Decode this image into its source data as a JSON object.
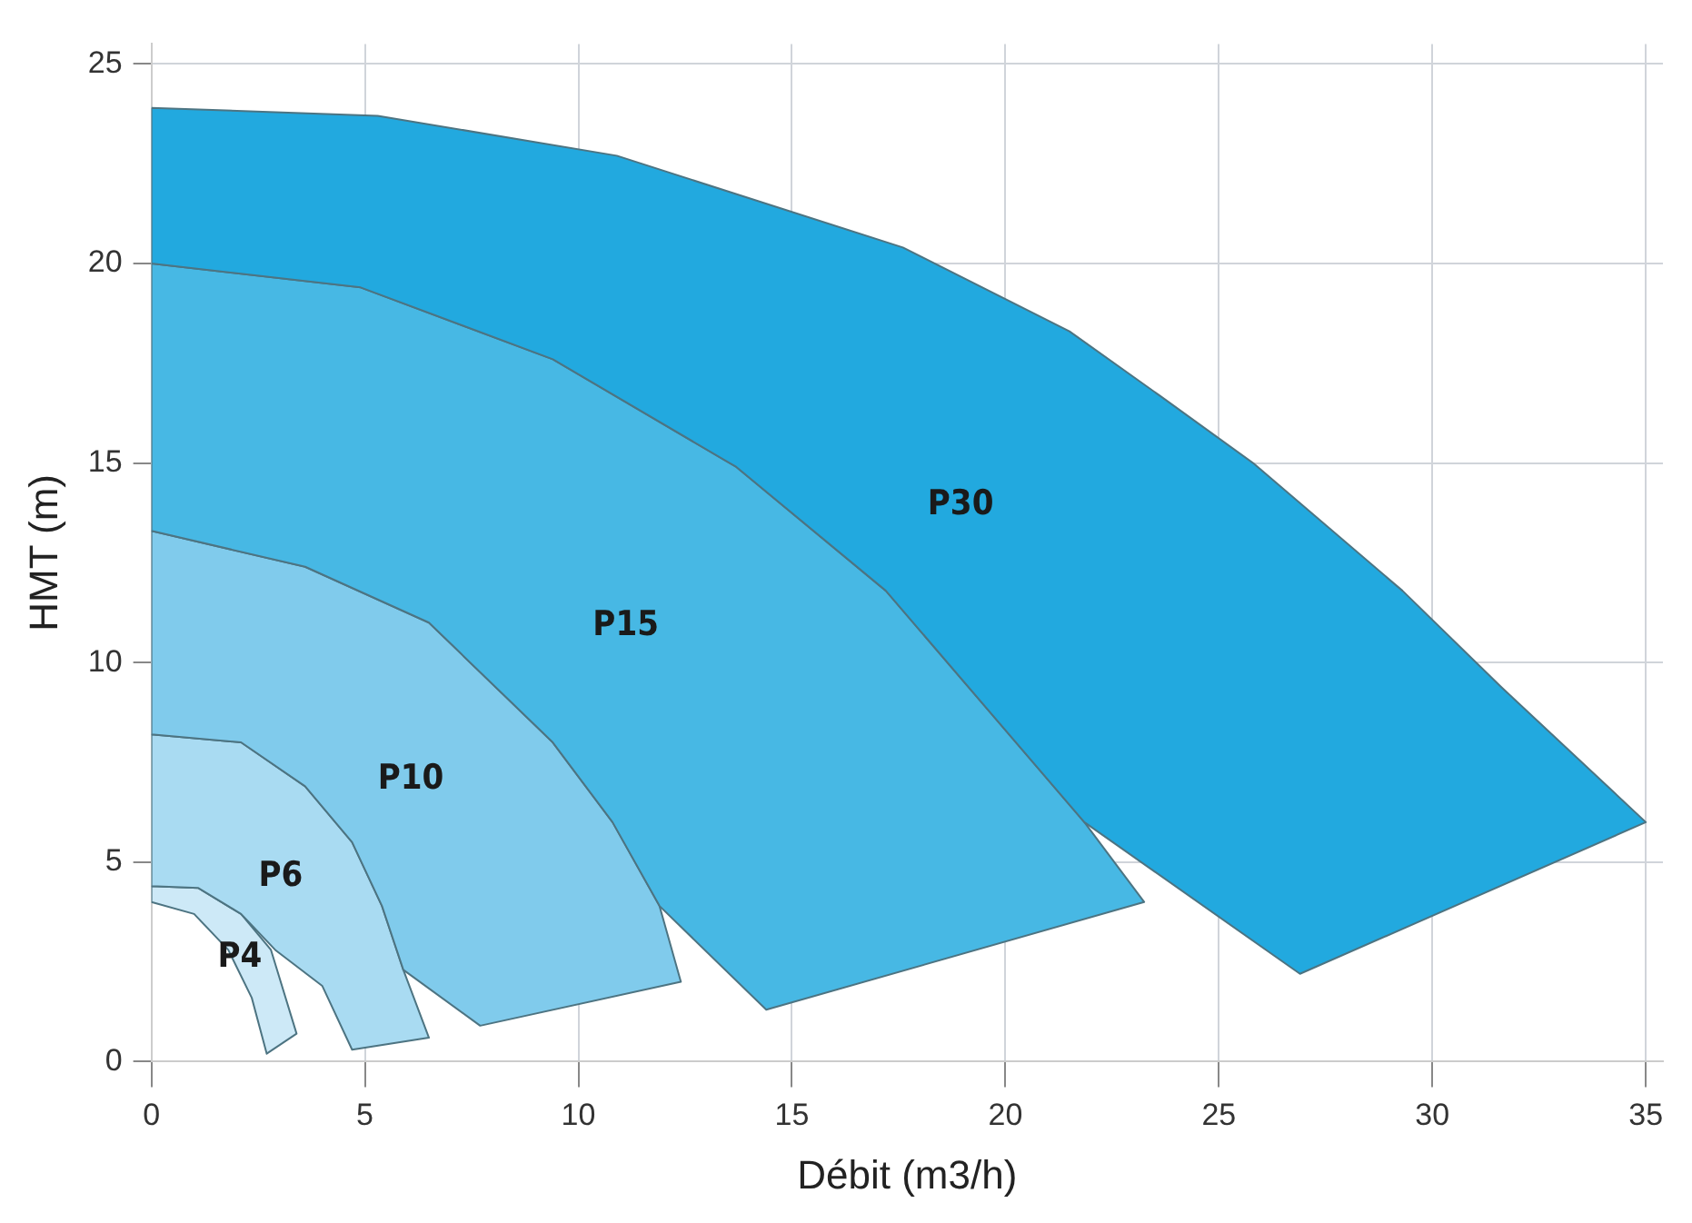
{
  "chart_data": {
    "type": "area",
    "xlabel": "Débit (m3/h)",
    "ylabel": "HMT (m)",
    "xlim": [
      0,
      35.4
    ],
    "xticks": [
      0,
      5,
      10,
      15,
      20,
      25,
      30,
      35
    ],
    "ylim": [
      0,
      25.5
    ],
    "yticks": [
      0,
      5,
      10,
      15,
      20,
      25
    ],
    "grid": true,
    "legend": false,
    "series": [
      {
        "name": "P30",
        "color": "#22a9df",
        "x": [
          0,
          5.3,
          10.9,
          17.6,
          21.5,
          23.6,
          25.8,
          29.3,
          31.6,
          35,
          26.9,
          21.85,
          17.2,
          13.7,
          9.4,
          4.9,
          0
        ],
        "values": [
          23.9,
          23.7,
          22.7,
          20.4,
          18.3,
          16.7,
          15,
          11.8,
          9.4,
          6,
          2.2,
          6,
          11.8,
          14.9,
          17.6,
          19.4,
          20
        ]
      },
      {
        "name": "P15",
        "color": "#47b8e4",
        "x": [
          0,
          4.9,
          9.4,
          13.7,
          17.2,
          21.85,
          23.25,
          14.4,
          11.9,
          10.8,
          9.4,
          6.5,
          3.6,
          0
        ],
        "values": [
          20,
          19.4,
          17.6,
          14.9,
          11.8,
          6,
          4,
          1.3,
          3.9,
          6,
          8,
          11,
          12.4,
          13.3
        ]
      },
      {
        "name": "P10",
        "color": "#80cbec",
        "x": [
          0,
          3.6,
          6.5,
          9.4,
          10.8,
          11.9,
          12.4,
          7.7,
          5.9,
          5.4,
          4.7,
          3.6,
          2.1,
          0
        ],
        "values": [
          13.3,
          12.4,
          11,
          8,
          6,
          3.9,
          2,
          0.9,
          2.3,
          3.9,
          5.5,
          6.9,
          8,
          8.2
        ]
      },
      {
        "name": "P6",
        "color": "#a9dbf2",
        "x": [
          0,
          2.1,
          3.6,
          4.7,
          5.4,
          5.9,
          6.5,
          4.7,
          4,
          2.9,
          2.1,
          1.1,
          0
        ],
        "values": [
          8.2,
          8,
          6.9,
          5.5,
          3.9,
          2.3,
          0.6,
          0.3,
          1.9,
          2.8,
          3.7,
          4.35,
          4.4
        ]
      },
      {
        "name": "P4",
        "color": "#cde9f7",
        "x": [
          0,
          1.1,
          2.1,
          2.8,
          3.4,
          2.7,
          2.35,
          1.8,
          1,
          0
        ],
        "values": [
          4.4,
          4.35,
          3.7,
          2.8,
          0.7,
          0.2,
          1.6,
          2.8,
          3.7,
          4
        ]
      }
    ]
  }
}
